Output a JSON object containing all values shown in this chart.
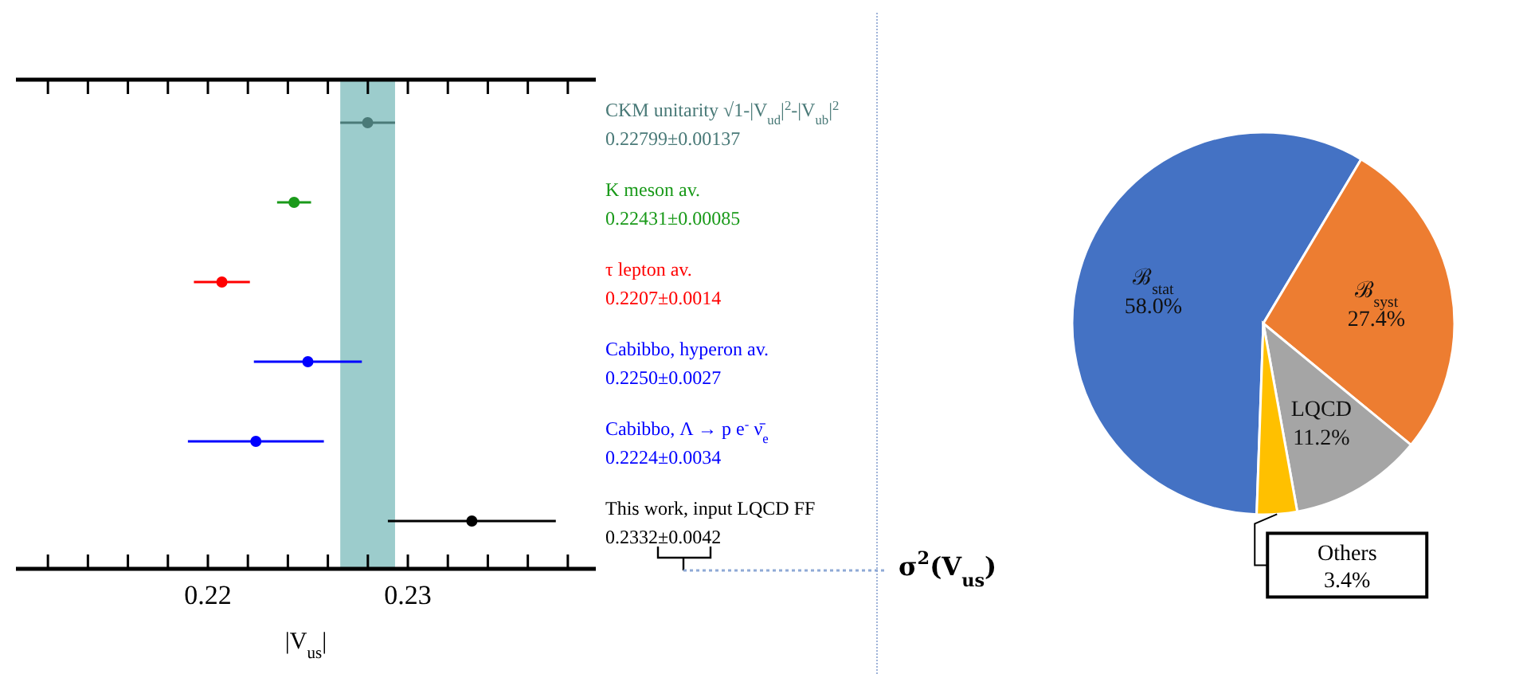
{
  "chart_data": [
    {
      "type": "scatter",
      "orientation": "horizontal",
      "categories": [
        "CKM unitarity √1-|V$_{ud}$|$^{2}$-|V$_{ub}$|$^{2}$",
        "K meson av.",
        "τ lepton av.",
        "Cabibbo, hyperon av.",
        "Cabibbo, Λ → p e$^{-}$ ν̄$_{e}$",
        "This work, input LQCD FF"
      ],
      "values": [
        0.22799,
        0.22431,
        0.2207,
        0.225,
        0.2224,
        0.2332
      ],
      "errors": [
        0.00137,
        0.00085,
        0.0014,
        0.0027,
        0.0034,
        0.0042
      ],
      "annotations": [
        "0.22799±0.00137",
        "0.22431±0.00085",
        "0.2207±0.0014",
        "0.2250±0.0027",
        "0.2224±0.0034",
        "0.2332±0.0042"
      ],
      "colors": [
        "#4a7a78",
        "#1a9a1a",
        "#ff0000",
        "#0000ff",
        "#0000ff",
        "#000000"
      ],
      "xlabel": "|V$_{us}$|",
      "xlim": [
        0.2104,
        0.2394
      ],
      "xticks": [
        {
          "value": 0.212,
          "label": null
        },
        {
          "value": 0.214,
          "label": null
        },
        {
          "value": 0.216,
          "label": null
        },
        {
          "value": 0.218,
          "label": null
        },
        0.22,
        {
          "value": 0.222,
          "label": null
        },
        {
          "value": 0.224,
          "label": null
        },
        {
          "value": 0.226,
          "label": null
        },
        {
          "value": 0.228,
          "label": null
        },
        0.23,
        {
          "value": 0.232,
          "label": null
        },
        {
          "value": 0.234,
          "label": null
        },
        {
          "value": 0.236,
          "label": null
        },
        {
          "value": 0.238,
          "label": null
        }
      ],
      "bands": [
        {
          "axis": "x",
          "from": 0.22662,
          "to": 0.22936,
          "color": "#9ccccc"
        }
      ],
      "marker": "circle"
    },
    {
      "type": "pie",
      "title": "σ$^{2}$(V$_{us}$)",
      "categories": [
        "ℬ$_{stat}$",
        "ℬ$_{syst}$",
        "LQCD",
        "Others"
      ],
      "values": [
        58.0,
        27.4,
        11.2,
        3.4
      ],
      "value_labels": [
        "58.0%",
        "27.4%",
        "11.2%",
        "3.4%"
      ],
      "colors": [
        "#4472c4",
        "#ed7d31",
        "#a5a5a5",
        "#ffc000"
      ]
    }
  ]
}
